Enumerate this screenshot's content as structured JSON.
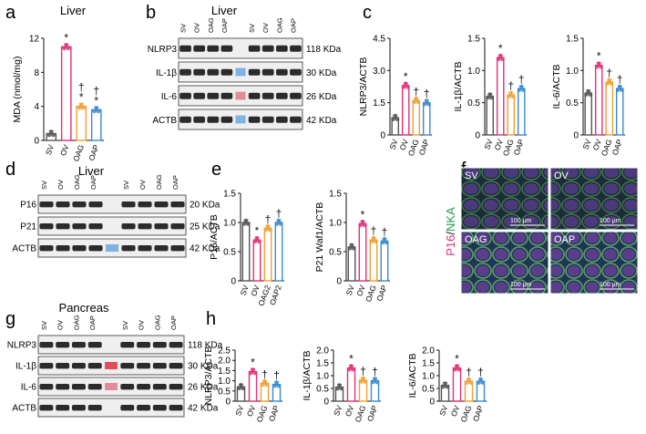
{
  "panel_letters": {
    "a": "a",
    "b": "b",
    "c": "c",
    "d": "d",
    "e": "e",
    "f": "f",
    "g": "g",
    "h": "h"
  },
  "group_labels": [
    "SV",
    "OV",
    "OAG",
    "OAP"
  ],
  "colors": {
    "SV": "#555555",
    "OV": "#e0307a",
    "OAG": "#f0a030",
    "OAP": "#3a8ad0",
    "star": "#111111"
  },
  "blot_b": {
    "title": "Liver",
    "lanes": [
      "SV",
      "OV",
      "OAG",
      "OAP",
      "SV",
      "OV",
      "OAG",
      "OAP"
    ],
    "rows": [
      {
        "protein": "NLRP3",
        "size": "118 KDa"
      },
      {
        "protein": "IL-1β",
        "size": "30 KDa"
      },
      {
        "protein": "IL-6",
        "size": "26 KDa"
      },
      {
        "protein": "ACTB",
        "size": "42 KDa"
      }
    ]
  },
  "blot_d": {
    "title": "Liver",
    "lanes": [
      "SV",
      "OV",
      "OAG",
      "OAP",
      "SV",
      "OV",
      "OAG",
      "OAP"
    ],
    "rows": [
      {
        "protein": "P16",
        "size": "20 KDa"
      },
      {
        "protein": "P21",
        "size": "25 KDa"
      },
      {
        "protein": "ACTB",
        "size": "42 KDa"
      }
    ]
  },
  "blot_g": {
    "title": "Pancreas",
    "lanes": [
      "SV",
      "OV",
      "OAG",
      "OAP",
      "SV",
      "OV",
      "OAG",
      "OAP"
    ],
    "rows": [
      {
        "protein": "NLRP3",
        "size": "118 KDa"
      },
      {
        "protein": "IL-1β",
        "size": "30 KDa"
      },
      {
        "protein": "IL-6",
        "size": "26 KDa"
      },
      {
        "protein": "ACTB",
        "size": "42 KDa"
      }
    ]
  },
  "micro_f": {
    "ylabel_p16": "P16",
    "ylabel_sep": "/",
    "ylabel_nka": "NKA",
    "tiles": [
      {
        "label": "SV",
        "scale": "100 μm"
      },
      {
        "label": "OV",
        "scale": "100 μm"
      },
      {
        "label": "OAG",
        "scale": "100 μm"
      },
      {
        "label": "OAP",
        "scale": "100 μm"
      }
    ]
  },
  "chart_data": [
    {
      "id": "a",
      "type": "bar",
      "title": "Liver",
      "ylabel": "MDA  (nmol/mg)",
      "categories": [
        "SV",
        "OV",
        "OAG",
        "OAP"
      ],
      "values": [
        0.8,
        11.0,
        4.0,
        3.6
      ],
      "ylim": [
        0,
        12
      ],
      "yticks": [
        "0",
        "4",
        "8",
        "12"
      ],
      "marks": [
        "",
        "*",
        "†\n*",
        "†\n*"
      ]
    },
    {
      "id": "c1",
      "type": "bar",
      "ylabel": "NLRP3/ACTB",
      "categories": [
        "SV",
        "OV",
        "OAG",
        "OAP"
      ],
      "values": [
        0.8,
        2.3,
        1.6,
        1.5
      ],
      "ylim": [
        0,
        4.5
      ],
      "yticks": [
        "0",
        "1.5",
        "3.0",
        "4.5"
      ],
      "marks": [
        "",
        "*",
        "†",
        "†"
      ]
    },
    {
      "id": "c2",
      "type": "bar",
      "ylabel": "IL-1β/ACTB",
      "categories": [
        "SV",
        "OV",
        "OAG",
        "OAP"
      ],
      "values": [
        0.6,
        1.2,
        0.62,
        0.72
      ],
      "ylim": [
        0,
        1.5
      ],
      "yticks": [
        "0",
        "0.5",
        "1.0",
        "1.5"
      ],
      "marks": [
        "",
        "*",
        "†",
        "†"
      ]
    },
    {
      "id": "c3",
      "type": "bar",
      "ylabel": "IL-6/ACTB",
      "categories": [
        "SV",
        "OV",
        "OAG",
        "OAP"
      ],
      "values": [
        0.65,
        1.08,
        0.82,
        0.72
      ],
      "ylim": [
        0,
        1.5
      ],
      "yticks": [
        "0",
        "0.5",
        "1.0",
        "1.5"
      ],
      "marks": [
        "",
        "*",
        "†",
        "†"
      ]
    },
    {
      "id": "e1",
      "type": "bar",
      "ylabel": "P16/ACTB",
      "categories": [
        "SV",
        "OV",
        "OAG2",
        "OAP2"
      ],
      "values": [
        1.0,
        0.7,
        0.9,
        1.0
      ],
      "ylim": [
        0,
        1.5
      ],
      "yticks": [
        "0",
        "0.5",
        "1.0",
        "1.5"
      ],
      "marks": [
        "",
        "*",
        "†",
        "†"
      ]
    },
    {
      "id": "e2",
      "type": "bar",
      "ylabel": "P21 Waf1/ACTB",
      "categories": [
        "SV",
        "OV",
        "OAG",
        "OAP"
      ],
      "values": [
        0.58,
        0.98,
        0.7,
        0.68
      ],
      "ylim": [
        0,
        1.5
      ],
      "yticks": [
        "0",
        "0.5",
        "1.0",
        "1.5"
      ],
      "marks": [
        "",
        "*",
        "†",
        "†"
      ]
    },
    {
      "id": "h1",
      "type": "bar",
      "ylabel": "NLRP3/ACTB",
      "categories": [
        "SV",
        "OV",
        "OAG",
        "OAP"
      ],
      "values": [
        0.7,
        1.45,
        0.88,
        0.82
      ],
      "ylim": [
        0,
        2.5
      ],
      "yticks": [
        "0",
        "0.5",
        "1.0",
        "1.5",
        "2.0",
        "2.5"
      ],
      "marks": [
        "",
        "*",
        "†",
        "†"
      ]
    },
    {
      "id": "h2",
      "type": "bar",
      "ylabel": "IL-1β/ACTB",
      "categories": [
        "SV",
        "OV",
        "OAG",
        "OAP"
      ],
      "values": [
        0.55,
        1.3,
        0.82,
        0.8
      ],
      "ylim": [
        0,
        2.0
      ],
      "yticks": [
        "0",
        "0.5",
        "1.0",
        "1.5",
        "2.0"
      ],
      "marks": [
        "",
        "*",
        "†",
        "†"
      ]
    },
    {
      "id": "h3",
      "type": "bar",
      "ylabel": "IL-6/ACTB",
      "categories": [
        "SV",
        "OV",
        "OAG",
        "OAP"
      ],
      "values": [
        0.62,
        1.3,
        0.78,
        0.78
      ],
      "ylim": [
        0,
        2.0
      ],
      "yticks": [
        "0",
        "0.5",
        "1.0",
        "1.5",
        "2.0"
      ],
      "marks": [
        "",
        "*",
        "†",
        "†"
      ]
    }
  ]
}
